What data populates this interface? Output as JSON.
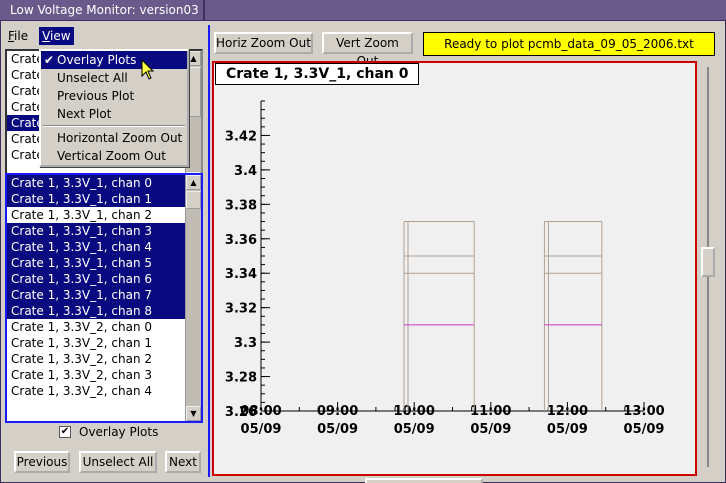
{
  "window": {
    "title": "Low Voltage Monitor: version03"
  },
  "menubar": {
    "file": "File",
    "view": "View"
  },
  "view_menu": {
    "items": [
      "Overlay Plots",
      "Unselect All",
      "Previous Plot",
      "Next Plot",
      "Horizontal Zoom Out",
      "Vertical Zoom Out"
    ],
    "checked": "Overlay Plots"
  },
  "top_list": {
    "rows": [
      {
        "label": "Crate",
        "selected": false
      },
      {
        "label": "Crate",
        "selected": false
      },
      {
        "label": "Crate",
        "selected": false
      },
      {
        "label": "Crate",
        "selected": false
      },
      {
        "label": "Crate",
        "selected": true
      },
      {
        "label": "Crate",
        "selected": false
      },
      {
        "label": "Crate",
        "selected": false
      }
    ]
  },
  "channel_list": {
    "rows": [
      {
        "label": "Crate 1, 3.3V_1, chan 0",
        "selected": true
      },
      {
        "label": "Crate 1, 3.3V_1, chan 1",
        "selected": true
      },
      {
        "label": "Crate 1, 3.3V_1, chan 2",
        "selected": false
      },
      {
        "label": "Crate 1, 3.3V_1, chan 3",
        "selected": true
      },
      {
        "label": "Crate 1, 3.3V_1, chan 4",
        "selected": true
      },
      {
        "label": "Crate 1, 3.3V_1, chan 5",
        "selected": true
      },
      {
        "label": "Crate 1, 3.3V_1, chan 6",
        "selected": true
      },
      {
        "label": "Crate 1, 3.3V_1, chan 7",
        "selected": true
      },
      {
        "label": "Crate 1, 3.3V_1, chan 8",
        "selected": true
      },
      {
        "label": "Crate 1, 3.3V_2, chan 0",
        "selected": false
      },
      {
        "label": "Crate 1, 3.3V_2, chan 1",
        "selected": false
      },
      {
        "label": "Crate 1, 3.3V_2, chan 2",
        "selected": false
      },
      {
        "label": "Crate 1, 3.3V_2, chan 3",
        "selected": false
      },
      {
        "label": "Crate 1, 3.3V_2, chan 4",
        "selected": false
      }
    ]
  },
  "overlay": {
    "label": "Overlay Plots",
    "checked": true
  },
  "buttons": {
    "previous": "Previous",
    "unselect_all": "Unselect All",
    "next": "Next"
  },
  "toolbar": {
    "horiz_zoom_out": "Horiz Zoom Out",
    "vert_zoom_out": "Vert Zoom Out",
    "status": "Ready to plot pcmb_data_09_05_2006.txt"
  },
  "colors": {
    "selection": "#0a0a80",
    "status_bg": "#ffff00",
    "frame": "#cc0000",
    "trace_main": "#b0a090",
    "trace_accent": "#cc33cc"
  },
  "chart_data": {
    "type": "line",
    "title": "Crate 1, 3.3V_1, chan 0",
    "xlabel": "",
    "ylabel": "",
    "x_ticks": [
      {
        "time": "08:00",
        "date": "05/09"
      },
      {
        "time": "09:00",
        "date": "05/09"
      },
      {
        "time": "10:00",
        "date": "05/09"
      },
      {
        "time": "11:00",
        "date": "05/09"
      },
      {
        "time": "12:00",
        "date": "05/09"
      },
      {
        "time": "13:00",
        "date": "05/09"
      }
    ],
    "xlim": [
      "08:00",
      "13:00"
    ],
    "y_ticks": [
      3.26,
      3.28,
      3.3,
      3.32,
      3.34,
      3.36,
      3.38,
      3.4,
      3.42
    ],
    "ylim": [
      3.26,
      3.44
    ],
    "grid": false,
    "segments": [
      {
        "start": "09:52",
        "end": "10:47",
        "levels": [
          3.31,
          3.34,
          3.35,
          3.37
        ]
      },
      {
        "start": "11:42",
        "end": "12:27",
        "levels": [
          3.31,
          3.34,
          3.35,
          3.37
        ]
      }
    ]
  }
}
